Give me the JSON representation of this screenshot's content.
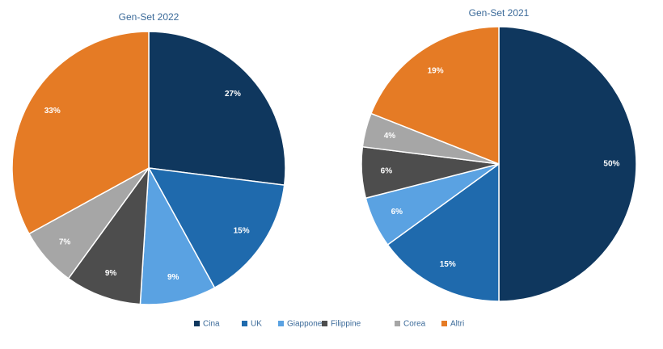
{
  "chart_data": [
    {
      "type": "pie",
      "title": "Gen-Set 2022",
      "categories": [
        "Cina",
        "UK",
        "Giappone",
        "Filippine",
        "Corea",
        "Altri"
      ],
      "values": [
        27,
        15,
        9,
        9,
        7,
        33
      ],
      "value_labels": [
        "27%",
        "15%",
        "9%",
        "9%",
        "7%",
        "33%"
      ],
      "colors": [
        "#0f375e",
        "#1f6aad",
        "#5aa2e2",
        "#4d4d4d",
        "#a6a6a6",
        "#e57b25"
      ]
    },
    {
      "type": "pie",
      "title": "Gen-Set 2021",
      "categories": [
        "Cina",
        "UK",
        "Giappone",
        "Filippine",
        "Corea",
        "Altri"
      ],
      "values": [
        50,
        15,
        6,
        6,
        4,
        19
      ],
      "value_labels": [
        "50%",
        "15%",
        "6%",
        "6%",
        "4%",
        "19%"
      ],
      "colors": [
        "#0f375e",
        "#1f6aad",
        "#5aa2e2",
        "#4d4d4d",
        "#a6a6a6",
        "#e57b25"
      ]
    }
  ]
}
